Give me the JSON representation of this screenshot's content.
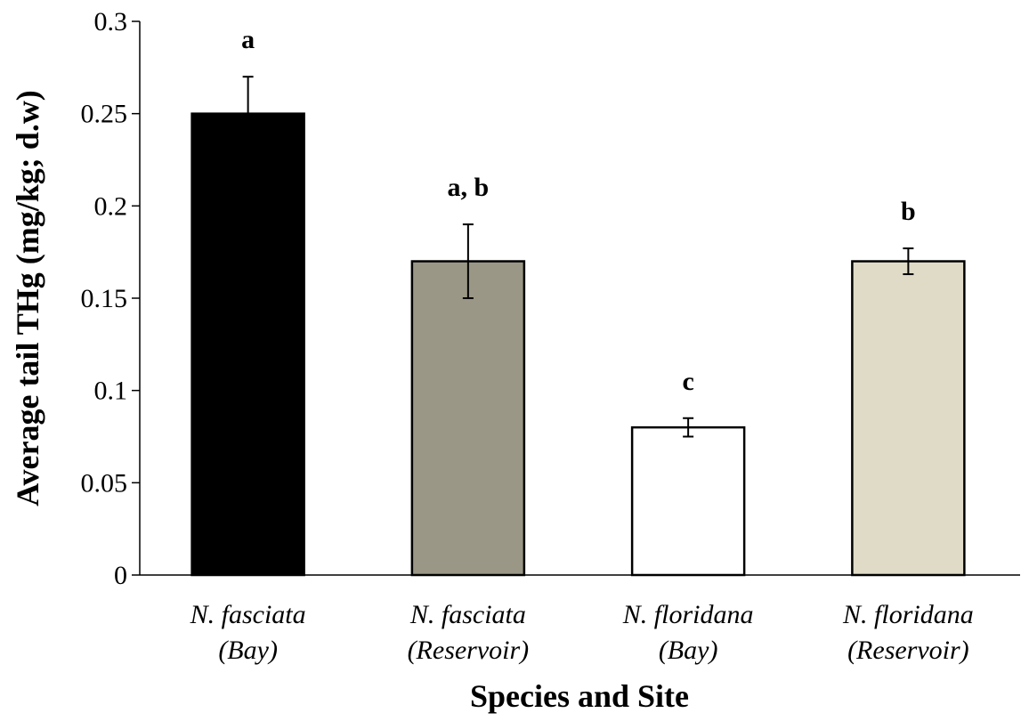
{
  "chart_data": {
    "type": "bar",
    "title": "",
    "xlabel": "Species and Site",
    "ylabel": "Average tail THg (mg/kg; d.w)",
    "ylim": [
      0,
      0.3
    ],
    "yticks": [
      "0",
      "0.05",
      "0.1",
      "0.15",
      "0.2",
      "0.25",
      "0.3"
    ],
    "categories": [
      {
        "line1": "N. fasciata",
        "line2": "(Bay)"
      },
      {
        "line1": "N. fasciata",
        "line2": "(Reservoir)"
      },
      {
        "line1": "N. floridana",
        "line2": "(Bay)"
      },
      {
        "line1": "N. floridana",
        "line2": "(Reservoir)"
      }
    ],
    "values": [
      0.25,
      0.17,
      0.08,
      0.17
    ],
    "errors": [
      0.02,
      0.02,
      0.005,
      0.007
    ],
    "significance_labels": [
      "a",
      "a, b",
      "c",
      "b"
    ],
    "colors": [
      "#000000",
      "#9a9786",
      "#ffffff",
      "#dfdbc7"
    ],
    "grid": false
  }
}
